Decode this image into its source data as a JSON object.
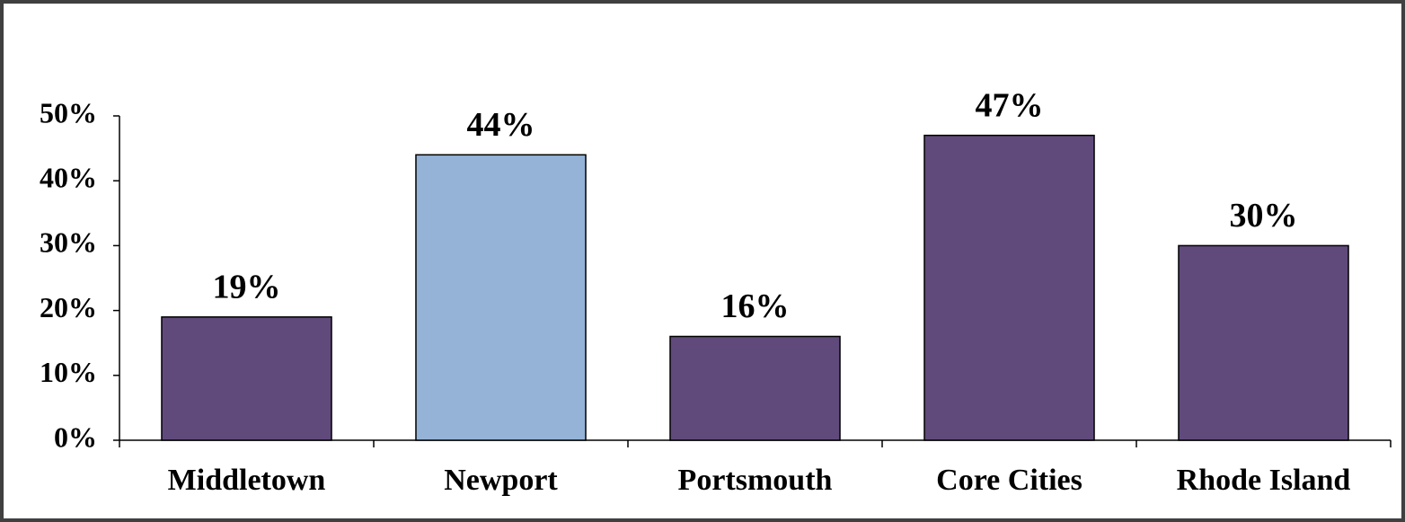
{
  "chart_data": {
    "type": "bar",
    "categories": [
      "Middletown",
      "Newport",
      "Portsmouth",
      "Core Cities",
      "Rhode Island"
    ],
    "values": [
      19,
      44,
      16,
      47,
      30
    ],
    "value_labels": [
      "19%",
      "44%",
      "16%",
      "47%",
      "30%"
    ],
    "colors": [
      "#604a7b",
      "#95b3d7",
      "#604a7b",
      "#604a7b",
      "#604a7b"
    ],
    "ylim": [
      0,
      50
    ],
    "yticks": [
      {
        "value": 0,
        "label": "0%"
      },
      {
        "value": 10,
        "label": "10%"
      },
      {
        "value": 20,
        "label": "20%"
      },
      {
        "value": 30,
        "label": "30%"
      },
      {
        "value": 40,
        "label": "40%"
      },
      {
        "value": 50,
        "label": "50%"
      }
    ],
    "grid": false
  }
}
